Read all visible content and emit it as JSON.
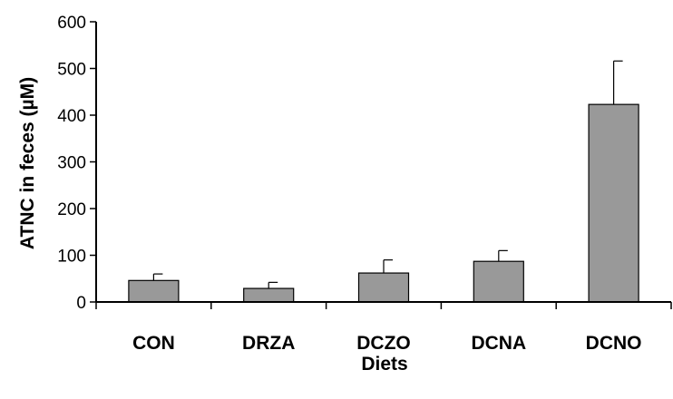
{
  "chart_data": {
    "type": "bar",
    "title": "",
    "xlabel": "Diets",
    "ylabel": "ATNC in feces (µM)",
    "categories": [
      "CON",
      "DRZA",
      "DCZO",
      "DCNA",
      "DCNO"
    ],
    "values": [
      46,
      29,
      62,
      87,
      423
    ],
    "error": [
      14,
      13,
      28,
      23,
      93
    ],
    "ylim": [
      0,
      600
    ],
    "yticks": [
      "0",
      "100",
      "200",
      "300",
      "400",
      "500",
      "600"
    ],
    "grid": false,
    "bar_color": "#999999",
    "error_bars": "upper"
  }
}
